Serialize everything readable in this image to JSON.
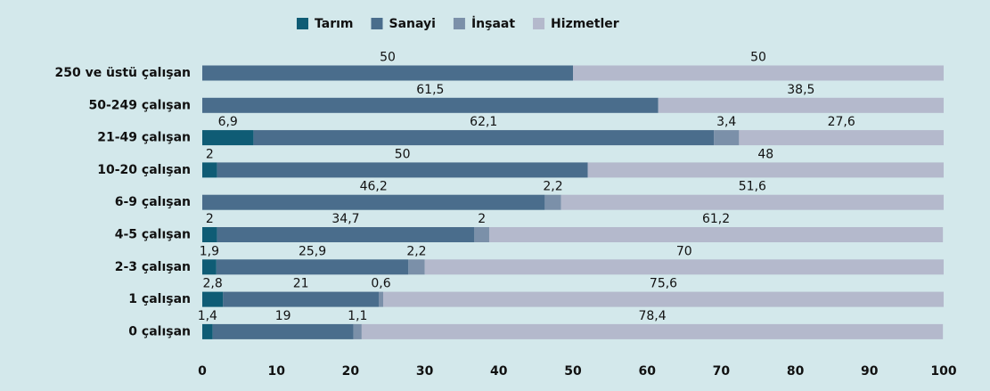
{
  "chart_data": {
    "type": "stacked_bar_horizontal",
    "categories": [
      "250 ve üstü çalışan",
      "50-249 çalışan",
      "21-49 çalışan",
      "10-20 çalışan",
      "6-9 çalışan",
      "4-5 çalışan",
      "2-3 çalışan",
      "1 çalışan",
      "0 çalışan"
    ],
    "series": [
      {
        "name": "Tarım",
        "color": "#0f5c75",
        "values": [
          null,
          null,
          6.9,
          2,
          null,
          2,
          1.9,
          2.8,
          1.4
        ],
        "value_labels": [
          null,
          null,
          "6,9",
          "2",
          null,
          "2",
          "1,9",
          "2,8",
          "1,4"
        ]
      },
      {
        "name": "Sanayi",
        "color": "#4a6d8c",
        "values": [
          50,
          61.5,
          62.1,
          50,
          46.2,
          34.7,
          25.9,
          21,
          19
        ],
        "value_labels": [
          "50",
          "61,5",
          "62,1",
          "50",
          "46,2",
          "34,7",
          "25,9",
          "21",
          "19"
        ]
      },
      {
        "name": "İnşaat",
        "color": "#7b90a9",
        "values": [
          null,
          null,
          3.4,
          null,
          2.2,
          2,
          2.2,
          0.6,
          1.1
        ],
        "value_labels": [
          null,
          null,
          "3,4",
          null,
          "2,2",
          "2",
          "2,2",
          "0,6",
          "1,1"
        ]
      },
      {
        "name": "Hizmetler",
        "color": "#b4b9cc",
        "values": [
          50,
          38.5,
          27.6,
          48,
          51.6,
          61.2,
          70,
          75.6,
          78.4
        ],
        "value_labels": [
          "50",
          "38,5",
          "27,6",
          "48",
          "51,6",
          "61,2",
          "70",
          "75,6",
          "78,4"
        ]
      }
    ],
    "xlim": [
      0,
      100
    ],
    "xticks": [
      0,
      10,
      20,
      30,
      40,
      50,
      60,
      70,
      80,
      90,
      100
    ],
    "legend": "top"
  }
}
